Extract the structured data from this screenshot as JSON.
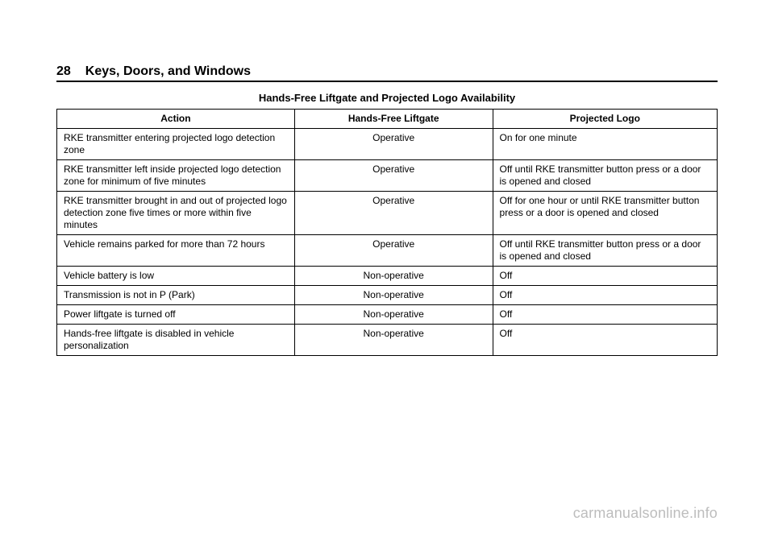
{
  "header": {
    "page_number": "28",
    "section": "Keys, Doors, and Windows"
  },
  "table": {
    "title": "Hands-Free Liftgate and Projected Logo Availability",
    "columns": [
      "Action",
      "Hands-Free\nLiftgate",
      "Projected Logo"
    ],
    "rows": [
      [
        "RKE transmitter entering projected logo detection zone",
        "Operative",
        "On for one minute"
      ],
      [
        "RKE transmitter left inside projected logo detection zone for minimum of five minutes",
        "Operative",
        "Off until RKE transmitter button press or a door is opened and closed"
      ],
      [
        "RKE transmitter brought in and out of projected logo detection zone five times or more within five minutes",
        "Operative",
        "Off for one hour or until RKE transmitter button press or a door is opened and closed"
      ],
      [
        "Vehicle remains parked for more than 72 hours",
        "Operative",
        "Off until RKE transmitter button press or a door is opened and closed"
      ],
      [
        "Vehicle battery is low",
        "Non-operative",
        "Off"
      ],
      [
        "Transmission is not in P (Park)",
        "Non-operative",
        "Off"
      ],
      [
        "Power liftgate is turned off",
        "Non-operative",
        "Off"
      ],
      [
        "Hands-free liftgate is disabled in vehicle personalization",
        "Non-operative",
        "Off"
      ]
    ]
  },
  "watermark": "carmanualsonline.info"
}
